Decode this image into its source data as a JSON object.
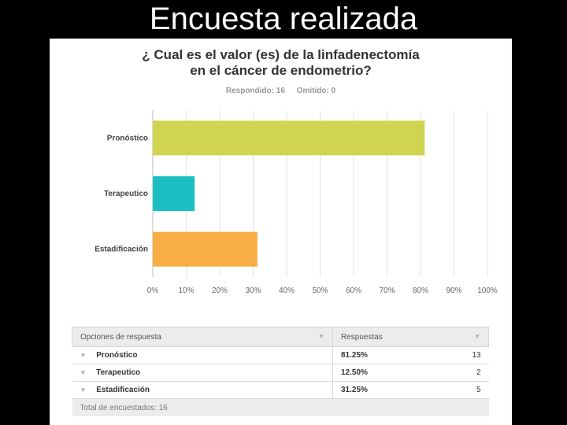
{
  "slide": {
    "title": "Encuesta realizada"
  },
  "survey": {
    "question_line1": "¿ Cual es el valor (es) de la linfadenectomía",
    "question_line2": "en el cáncer de endometrio?",
    "answered": "Respondido: 16",
    "skipped": "Omitido: 0"
  },
  "chart_data": {
    "type": "bar",
    "orientation": "horizontal",
    "categories": [
      "Pronóstico",
      "Terapeutico",
      "Estadificación"
    ],
    "values": [
      81.25,
      12.5,
      31.25
    ],
    "colors": [
      "#cfd451",
      "#1abfc4",
      "#f8ae44"
    ],
    "xlim": [
      0,
      100
    ],
    "xticks": [
      "0%",
      "10%",
      "20%",
      "30%",
      "40%",
      "50%",
      "60%",
      "70%",
      "80%",
      "90%",
      "100%"
    ],
    "grid": true
  },
  "table": {
    "col_options": "Opciones de respuesta",
    "col_responses": "Respuestas",
    "rows": [
      {
        "option": "Pronóstico",
        "percent": "81.25%",
        "count": "13"
      },
      {
        "option": "Terapeutico",
        "percent": "12.50%",
        "count": "2"
      },
      {
        "option": "Estadificación",
        "percent": "31.25%",
        "count": "5"
      }
    ],
    "total": "Total de encuestados: 16"
  }
}
